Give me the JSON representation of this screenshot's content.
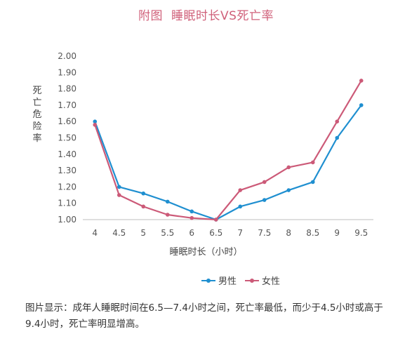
{
  "figure": {
    "title_prefix": "附图",
    "title_main": "睡眠时长VS死亡率",
    "caption": "图片显示：成年人睡眠时间在6.5—7.4小时之间，死亡率最低，而少于4.5小时或高于9.4小时，死亡率明显增高。"
  },
  "chart_data": {
    "type": "line",
    "xlabel": "睡眠时长（小时）",
    "ylabel": "死亡危险率",
    "categories": [
      "4",
      "4.5",
      "5",
      "5.5",
      "6",
      "6.5",
      "7",
      "7.5",
      "8",
      "8.5",
      "9",
      "9.5"
    ],
    "ylim": [
      1.0,
      2.0
    ],
    "yticks": [
      "1.00",
      "1.10",
      "1.20",
      "1.30",
      "1.40",
      "1.50",
      "1.60",
      "1.70",
      "1.80",
      "1.90",
      "2.00"
    ],
    "grid": false,
    "legend_position": "bottom",
    "series": [
      {
        "name": "男性",
        "color": "#1f8fd0",
        "values": [
          1.6,
          1.2,
          1.16,
          1.11,
          1.05,
          1.0,
          1.08,
          1.12,
          1.18,
          1.23,
          1.5,
          1.7
        ]
      },
      {
        "name": "女性",
        "color": "#cc5a78",
        "values": [
          1.58,
          1.15,
          1.08,
          1.03,
          1.01,
          1.0,
          1.18,
          1.23,
          1.32,
          1.35,
          1.6,
          1.85
        ]
      }
    ]
  }
}
